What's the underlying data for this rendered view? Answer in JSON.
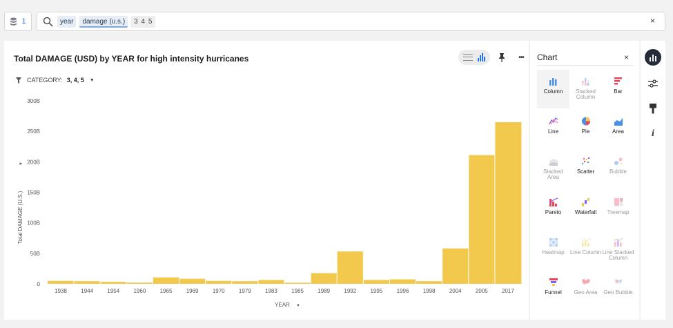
{
  "source_button": {
    "count": "1",
    "icon": "database-icon"
  },
  "search": {
    "icon": "search-icon",
    "tokens": [
      "year",
      "damage (u.s.)",
      "3 4 5"
    ],
    "clear_label": "×"
  },
  "panel": {
    "title": "Total DAMAGE (USD) by YEAR for high intensity hurricanes",
    "filter": {
      "label": "CATEGORY:",
      "value": "3, 4, 5",
      "icon": "filter-icon"
    },
    "toolbar": {
      "table_icon": "table-icon",
      "chart_icon": "bar-chart-icon",
      "pin_icon": "pin-icon",
      "more_label": "•••"
    }
  },
  "chart_data": {
    "type": "bar",
    "title": "Total DAMAGE (USD) by YEAR for high intensity hurricanes",
    "xlabel": "YEAR",
    "ylabel": "Total DAMAGE (U.S.)",
    "ylim": [
      0,
      300
    ],
    "y_ticks": [
      "0",
      "50B",
      "100B",
      "150B",
      "200B",
      "250B",
      "300B"
    ],
    "tick_labels": [
      "1938",
      "1944",
      "1954",
      "1960",
      "1965",
      "1969",
      "1970",
      "1979",
      "1983",
      "1985",
      "1989",
      "1992",
      "1995",
      "1996",
      "1998",
      "2004",
      "2005",
      "2017"
    ],
    "categories": [
      "1938",
      "",
      "1944",
      "",
      "1954",
      "",
      "1960",
      "",
      "1965",
      "",
      "1969",
      "",
      "1970",
      "",
      "1979",
      "",
      "1983",
      "",
      "1985",
      "",
      "1989",
      "",
      "1992",
      "",
      "1995",
      "",
      "1996",
      "",
      "1998",
      "",
      "2004",
      "",
      "2005",
      "",
      "2017",
      ""
    ],
    "values": [
      4.8,
      4.8,
      4.3,
      4.3,
      3.3,
      3.3,
      2.0,
      2.0,
      10.5,
      10.5,
      8.3,
      8.3,
      4.8,
      4.8,
      4.3,
      4.3,
      6.2,
      6.2,
      1.8,
      1.8,
      17.5,
      17.5,
      53.0,
      53.0,
      6.3,
      6.3,
      7.3,
      7.3,
      4.3,
      4.3,
      58.0,
      58.0,
      211.0,
      211.0,
      265.0,
      265.0
    ],
    "bar_color": "#f2c94c",
    "grid": false
  },
  "chart_panel": {
    "title": "Chart",
    "close_label": "×",
    "types": [
      {
        "label": "Column",
        "icon": "column-chart-icon",
        "active": true,
        "selected": true
      },
      {
        "label": "Stacked Column",
        "icon": "stacked-column-chart-icon",
        "active": false
      },
      {
        "label": "Bar",
        "icon": "bar-chart-icon",
        "active": true
      },
      {
        "label": "Line",
        "icon": "line-chart-icon",
        "active": true
      },
      {
        "label": "Pie",
        "icon": "pie-chart-icon",
        "active": true
      },
      {
        "label": "Area",
        "icon": "area-chart-icon",
        "active": true
      },
      {
        "label": "Stacked Area",
        "icon": "stacked-area-chart-icon",
        "active": false
      },
      {
        "label": "Scatter",
        "icon": "scatter-chart-icon",
        "active": true
      },
      {
        "label": "Bubble",
        "icon": "bubble-chart-icon",
        "active": false
      },
      {
        "label": "Pareto",
        "icon": "pareto-chart-icon",
        "active": true
      },
      {
        "label": "Waterfall",
        "icon": "waterfall-chart-icon",
        "active": true
      },
      {
        "label": "Treemap",
        "icon": "treemap-chart-icon",
        "active": false
      },
      {
        "label": "Heatmap",
        "icon": "heatmap-chart-icon",
        "active": false
      },
      {
        "label": "Line Column",
        "icon": "line-column-chart-icon",
        "active": false
      },
      {
        "label": "Line Stacked Column",
        "icon": "line-stacked-column-chart-icon",
        "active": false
      },
      {
        "label": "Funnel",
        "icon": "funnel-chart-icon",
        "active": true
      },
      {
        "label": "Geo Area",
        "icon": "geo-area-chart-icon",
        "active": false
      },
      {
        "label": "Geo Bubble",
        "icon": "geo-bubble-chart-icon",
        "active": false
      }
    ]
  },
  "rail": {
    "buttons": [
      {
        "icon": "chart-type-icon",
        "active": true
      },
      {
        "icon": "settings-sliders-icon",
        "active": false
      },
      {
        "icon": "brush-icon",
        "active": false
      },
      {
        "icon": "info-icon",
        "active": false
      }
    ]
  }
}
